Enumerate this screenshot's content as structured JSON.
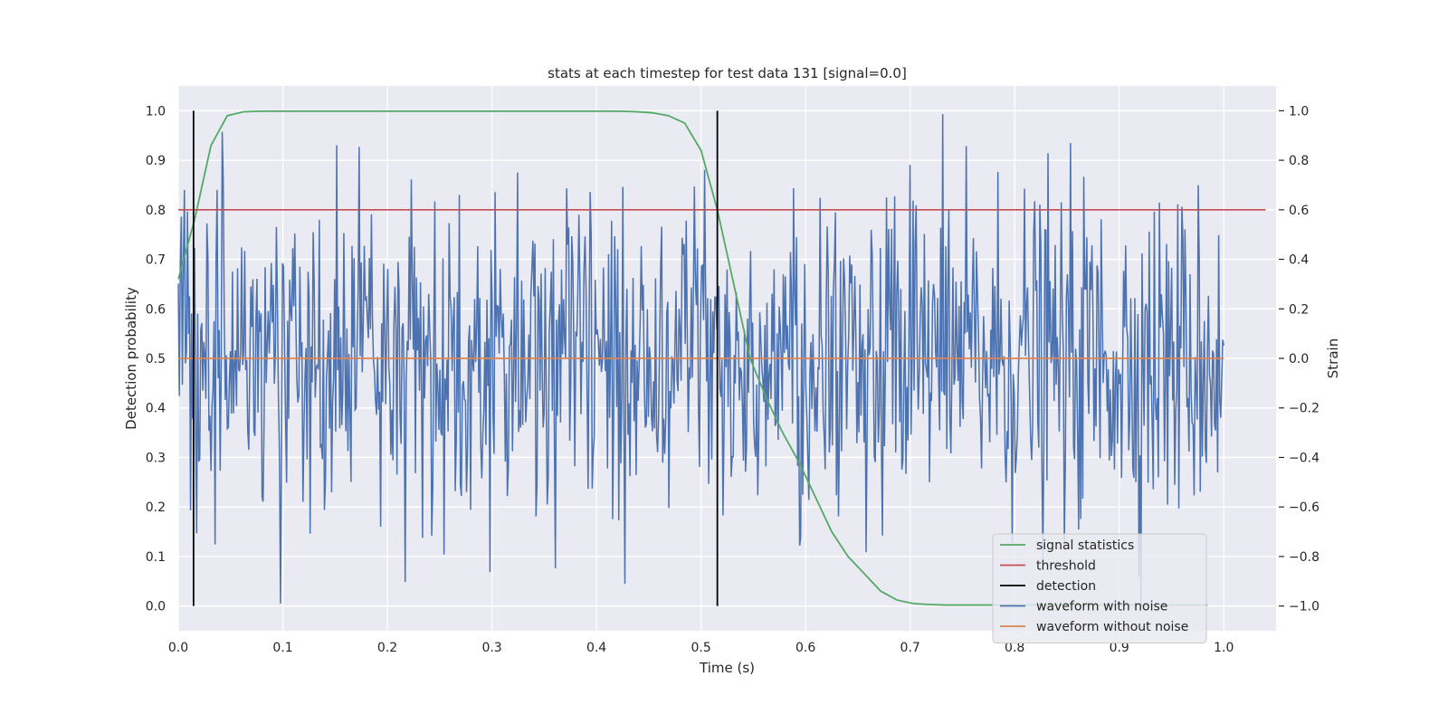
{
  "chart_data": {
    "type": "line",
    "title": "stats at each timestep for test data 131 [signal=0.0]",
    "xlabel": "Time (s)",
    "ylabel": "Detection probability",
    "y2label": "Strain",
    "xlim": [
      0.0,
      1.05
    ],
    "ylim": [
      -0.05,
      1.05
    ],
    "y2lim": [
      -1.1,
      1.1
    ],
    "x_ticks": [
      "0.0",
      "0.1",
      "0.2",
      "0.3",
      "0.4",
      "0.5",
      "0.6",
      "0.7",
      "0.8",
      "0.9",
      "1.0"
    ],
    "y_ticks": [
      "0.0",
      "0.1",
      "0.2",
      "0.3",
      "0.4",
      "0.5",
      "0.6",
      "0.7",
      "0.8",
      "0.9",
      "1.0"
    ],
    "y2_ticks": [
      "−1.0",
      "−0.8",
      "−0.6",
      "−0.4",
      "−0.2",
      "0.0",
      "0.2",
      "0.4",
      "0.6",
      "0.8",
      "1.0"
    ],
    "grid": true,
    "legend_position": "lower-right",
    "background": "#eaeaf2",
    "colors": {
      "signal_statistics": "#55a868",
      "threshold": "#c44e52",
      "detection": "#000000",
      "waveform_with_noise": "#4c72b0",
      "waveform_without_noise": "#dd8452"
    },
    "legend": [
      {
        "label": "signal statistics",
        "color": "#55a868"
      },
      {
        "label": "threshold",
        "color": "#c44e52"
      },
      {
        "label": "detection",
        "color": "#000000"
      },
      {
        "label": "waveform with noise",
        "color": "#4c72b0"
      },
      {
        "label": "waveform without noise",
        "color": "#dd8452"
      }
    ],
    "series": [
      {
        "name": "signal statistics",
        "axis": "left",
        "x": [
          0.0,
          0.0156,
          0.0313,
          0.0469,
          0.0625,
          0.0781,
          0.0938,
          0.1094,
          0.125,
          0.1406,
          0.1563,
          0.1719,
          0.1875,
          0.2031,
          0.2188,
          0.2344,
          0.25,
          0.2656,
          0.2813,
          0.2969,
          0.3125,
          0.3281,
          0.3438,
          0.3594,
          0.375,
          0.3906,
          0.4063,
          0.4219,
          0.4375,
          0.4531,
          0.4688,
          0.4844,
          0.5,
          0.5156,
          0.5313,
          0.5469,
          0.5625,
          0.5781,
          0.5938,
          0.6094,
          0.625,
          0.6406,
          0.6563,
          0.6719,
          0.6875,
          0.7031,
          0.7188,
          0.7344,
          0.75,
          0.7656,
          0.7813,
          0.7969,
          0.8125,
          0.8281,
          0.8438,
          0.8594,
          0.875,
          0.8906,
          0.9063,
          0.9219,
          0.9375,
          0.9531,
          0.9688,
          0.9844
        ],
        "y": [
          0.66,
          0.78,
          0.93,
          0.99,
          0.998,
          0.999,
          0.999,
          0.999,
          0.999,
          0.999,
          0.999,
          0.999,
          0.999,
          0.999,
          0.999,
          0.999,
          0.999,
          0.999,
          0.999,
          0.999,
          0.999,
          0.999,
          0.999,
          0.999,
          0.999,
          0.999,
          0.999,
          0.999,
          0.998,
          0.996,
          0.99,
          0.975,
          0.92,
          0.8,
          0.65,
          0.5,
          0.42,
          0.35,
          0.29,
          0.22,
          0.15,
          0.1,
          0.065,
          0.03,
          0.012,
          0.005,
          0.003,
          0.002,
          0.002,
          0.002,
          0.002,
          0.002,
          0.002,
          0.002,
          0.002,
          0.002,
          0.002,
          0.002,
          0.002,
          0.002,
          0.002,
          0.002,
          0.002,
          0.002
        ]
      },
      {
        "name": "threshold",
        "axis": "left",
        "x": [
          0.0,
          1.04
        ],
        "y": [
          0.8,
          0.8
        ]
      },
      {
        "name": "detection",
        "axis": "left",
        "x": [
          0.0146,
          0.5156
        ],
        "y": [
          1.0,
          1.0
        ]
      },
      {
        "name": "waveform with noise",
        "axis": "right",
        "num_points": 1024,
        "x_range": [
          0.0,
          1.0
        ],
        "y_range": [
          -1.0,
          1.0
        ]
      },
      {
        "name": "waveform without noise",
        "axis": "right",
        "x": [
          0.0,
          1.0
        ],
        "y": [
          0.0,
          0.0
        ]
      }
    ]
  }
}
